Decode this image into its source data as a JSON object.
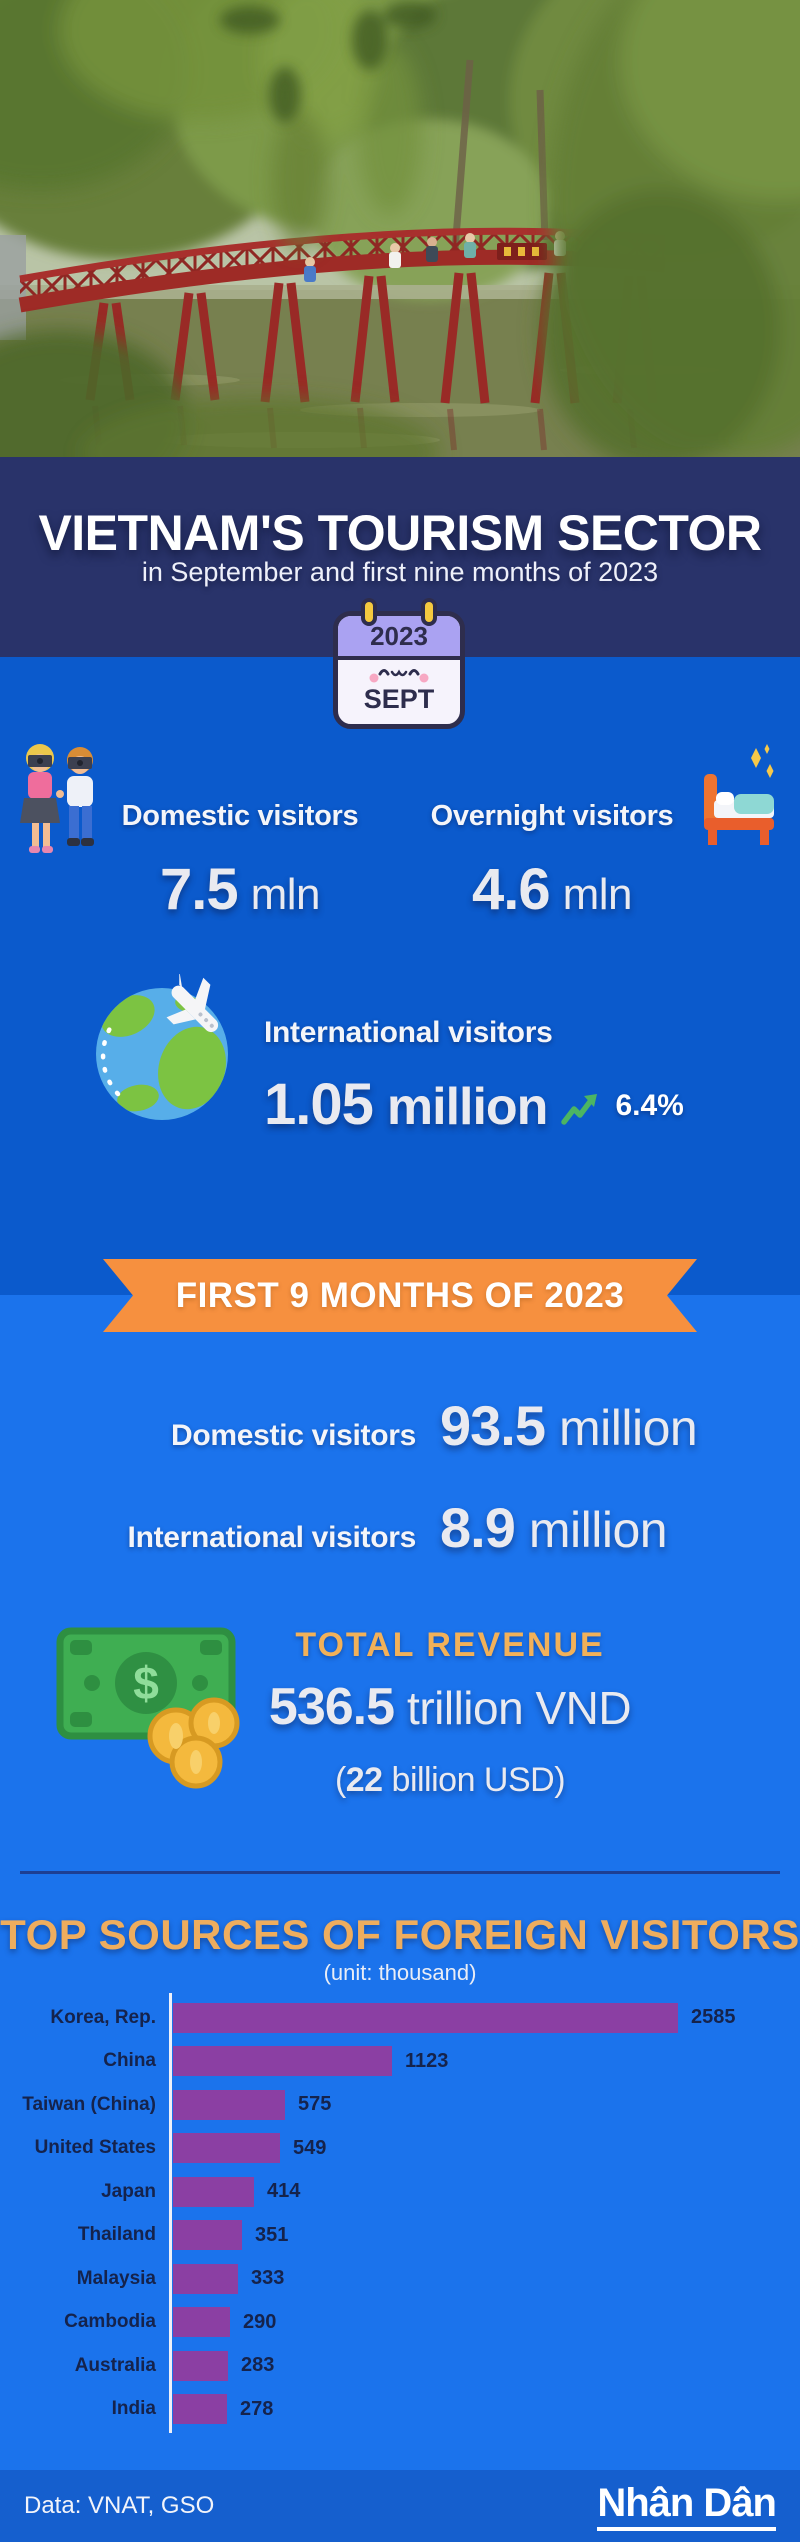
{
  "header": {
    "title": "VIETNAM'S TOURISM SECTOR",
    "subtitle": "in September and first nine months of 2023",
    "calendar": {
      "year": "2023",
      "month": "SEPT"
    }
  },
  "september": {
    "domestic": {
      "label": "Domestic visitors",
      "value": "7.5",
      "unit": "mln"
    },
    "overnight": {
      "label": "Overnight visitors",
      "value": "4.6",
      "unit": "mln"
    },
    "international": {
      "label": "International visitors",
      "value": "1.05",
      "unit": "million",
      "growth": "6.4%"
    }
  },
  "first_nine_months": {
    "banner": "FIRST 9 MONTHS OF 2023",
    "domestic": {
      "label": "Domestic visitors",
      "value": "93.5",
      "unit": "million"
    },
    "international": {
      "label": "International visitors",
      "value": "8.9",
      "unit": "million"
    },
    "revenue": {
      "heading": "TOTAL REVENUE",
      "value": "536.5",
      "unit": "trillion VND",
      "usd_open": "(",
      "usd_value": "22",
      "usd_rest": " billion USD)"
    }
  },
  "chart_section": {
    "title": "TOP SOURCES OF FOREIGN VISITORS",
    "unit_note": "(unit: thousand)"
  },
  "chart_data": {
    "type": "bar",
    "orientation": "horizontal",
    "title": "TOP SOURCES OF FOREIGN VISITORS",
    "unit": "thousand",
    "categories": [
      "Korea, Rep.",
      "China",
      "Taiwan (China)",
      "United States",
      "Japan",
      "Thailand",
      "Malaysia",
      "Cambodia",
      "Australia",
      "India"
    ],
    "values": [
      2585,
      1123,
      575,
      549,
      414,
      351,
      333,
      290,
      283,
      278
    ],
    "xlim": [
      0,
      2585
    ],
    "grid": false,
    "value_labels": true,
    "bar_color": "#8b3fa3"
  },
  "footer": {
    "source": "Data: VNAT, GSO",
    "logo": "Nhân Dân"
  },
  "colors": {
    "navy_band": "#29336a",
    "blue_top": "#0b5acc",
    "blue_light": "#1b73ec",
    "footer_blue": "#155fce",
    "ribbon_orange": "#f6903f",
    "heading_orange": "#eead5e",
    "bar_purple": "#8b3fa3",
    "chart_text_navy": "#15234c",
    "growth_green": "#4cb562"
  },
  "icons": [
    "tourist-couple-icon",
    "bed-icon",
    "globe-airplane-icon",
    "trend-up-icon",
    "calendar-icon",
    "money-icon",
    "hero-photo-bridge"
  ]
}
